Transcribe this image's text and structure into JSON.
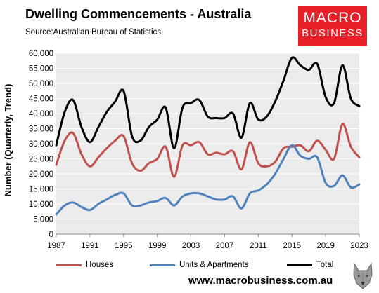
{
  "header": {
    "title": "Dwelling Commencements - Australia",
    "source": "Source:Australian Bureau of Statistics",
    "logo_line1": "MACRO",
    "logo_line2": "BUSINESS"
  },
  "footer": {
    "website": "www.macrobusiness.com.au"
  },
  "colors": {
    "houses": "#c0504d",
    "units": "#4f81bd",
    "total": "#000000",
    "plot_bg": "#ececec",
    "logo_bg": "#e8202a"
  },
  "icons": {
    "logo_mark": "wolf-icon"
  },
  "chart_data": {
    "type": "line",
    "ylabel": "Number (Quarterly, Trend)",
    "xlabel": "",
    "ylim": [
      0,
      60000
    ],
    "xlim": [
      1987,
      2023
    ],
    "grid": true,
    "legend_position": "bottom",
    "y_ticks": [
      "0",
      "5,000",
      "10,000",
      "15,000",
      "20,000",
      "25,000",
      "30,000",
      "35,000",
      "40,000",
      "45,000",
      "50,000",
      "55,000",
      "60,000"
    ],
    "x_ticks": [
      "1987",
      "1991",
      "1995",
      "1999",
      "2003",
      "2007",
      "2011",
      "2015",
      "2019",
      "2023"
    ],
    "x": [
      1987,
      1988,
      1989,
      1990,
      1991,
      1992,
      1993,
      1994,
      1995,
      1996,
      1997,
      1998,
      1999,
      2000,
      2001,
      2002,
      2003,
      2004,
      2005,
      2006,
      2007,
      2008,
      2009,
      2010,
      2011,
      2012,
      2013,
      2014,
      2015,
      2016,
      2017,
      2018,
      2019,
      2020,
      2021,
      2022,
      2023
    ],
    "series": [
      {
        "name": "Houses",
        "color": "#c0504d",
        "values": [
          23000,
          31000,
          33500,
          26500,
          22500,
          25500,
          28500,
          31000,
          32500,
          23500,
          21000,
          23500,
          25000,
          29000,
          19000,
          29500,
          29500,
          30500,
          26500,
          27000,
          26500,
          27500,
          21500,
          30500,
          23500,
          22500,
          24000,
          28500,
          29000,
          29500,
          27500,
          31000,
          28000,
          25000,
          36500,
          29000,
          25500
        ]
      },
      {
        "name": "Units & Apartments",
        "color": "#4f81bd",
        "values": [
          6500,
          9500,
          10500,
          9000,
          8000,
          10000,
          11500,
          13000,
          13500,
          9500,
          9500,
          10500,
          11000,
          12000,
          9500,
          12500,
          13500,
          13500,
          12500,
          11500,
          11500,
          12500,
          8500,
          13500,
          14500,
          16500,
          20000,
          25000,
          29500,
          26000,
          25000,
          25500,
          17000,
          16000,
          19500,
          15500,
          16500
        ]
      },
      {
        "name": "Total",
        "color": "#000000",
        "values": [
          29500,
          40500,
          44500,
          35500,
          30500,
          35500,
          40500,
          44000,
          47500,
          32500,
          31000,
          35500,
          38000,
          42000,
          28500,
          42000,
          43500,
          44500,
          39000,
          38500,
          38500,
          40000,
          32000,
          43500,
          38000,
          39000,
          44000,
          51000,
          58500,
          56000,
          54500,
          56500,
          45500,
          43500,
          56000,
          45000,
          42500
        ]
      }
    ]
  }
}
